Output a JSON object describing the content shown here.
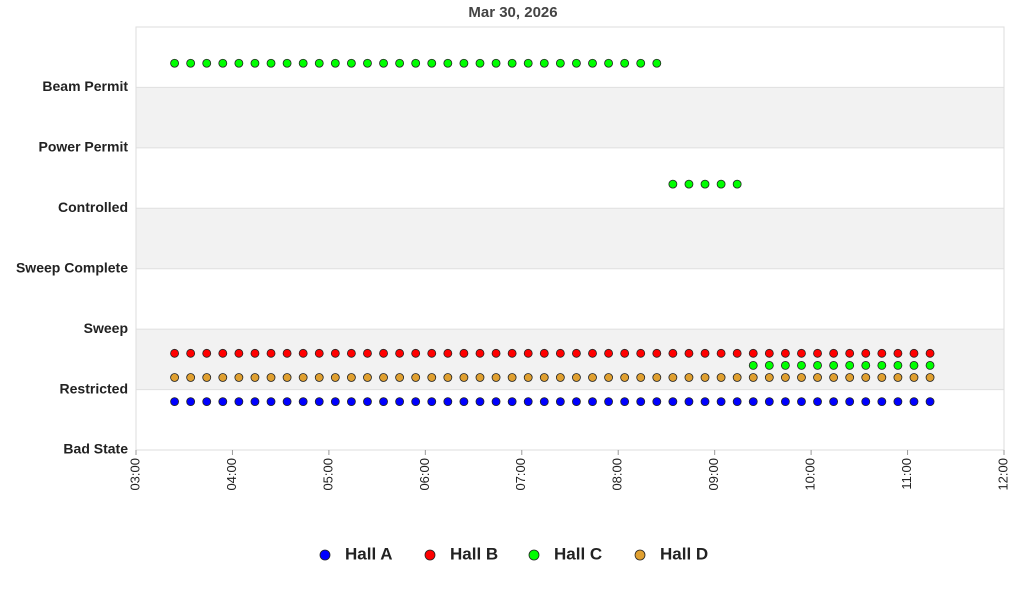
{
  "chart_data": {
    "type": "scatter",
    "title": "Mar 30, 2026",
    "x": [
      "03:24",
      "03:34",
      "03:44",
      "03:54",
      "04:04",
      "04:14",
      "04:24",
      "04:34",
      "04:44",
      "04:54",
      "05:04",
      "05:14",
      "05:24",
      "05:34",
      "05:44",
      "05:54",
      "06:04",
      "06:14",
      "06:24",
      "06:34",
      "06:44",
      "06:54",
      "07:04",
      "07:14",
      "07:24",
      "07:34",
      "07:44",
      "07:54",
      "08:04",
      "08:14",
      "08:24",
      "08:34",
      "08:44",
      "08:54",
      "09:04",
      "09:14",
      "09:24",
      "09:34",
      "09:44",
      "09:54",
      "10:04",
      "10:14",
      "10:24",
      "10:34",
      "10:44",
      "10:54",
      "11:04",
      "11:14"
    ],
    "series": [
      {
        "name": "Hall A",
        "color": "#0000ff",
        "values": [
          0.8,
          0.8,
          0.8,
          0.8,
          0.8,
          0.8,
          0.8,
          0.8,
          0.8,
          0.8,
          0.8,
          0.8,
          0.8,
          0.8,
          0.8,
          0.8,
          0.8,
          0.8,
          0.8,
          0.8,
          0.8,
          0.8,
          0.8,
          0.8,
          0.8,
          0.8,
          0.8,
          0.8,
          0.8,
          0.8,
          0.8,
          0.8,
          0.8,
          0.8,
          0.8,
          0.8,
          0.8,
          0.8,
          0.8,
          0.8,
          0.8,
          0.8,
          0.8,
          0.8,
          0.8,
          0.8,
          0.8,
          0.8
        ]
      },
      {
        "name": "Hall B",
        "color": "#ff0000",
        "values": [
          1.6,
          1.6,
          1.6,
          1.6,
          1.6,
          1.6,
          1.6,
          1.6,
          1.6,
          1.6,
          1.6,
          1.6,
          1.6,
          1.6,
          1.6,
          1.6,
          1.6,
          1.6,
          1.6,
          1.6,
          1.6,
          1.6,
          1.6,
          1.6,
          1.6,
          1.6,
          1.6,
          1.6,
          1.6,
          1.6,
          1.6,
          1.6,
          1.6,
          1.6,
          1.6,
          1.6,
          1.6,
          1.6,
          1.6,
          1.6,
          1.6,
          1.6,
          1.6,
          1.6,
          1.6,
          1.6,
          1.6,
          1.6
        ]
      },
      {
        "name": "Hall C",
        "color": "#00ff00",
        "values": [
          6.4,
          6.4,
          6.4,
          6.4,
          6.4,
          6.4,
          6.4,
          6.4,
          6.4,
          6.4,
          6.4,
          6.4,
          6.4,
          6.4,
          6.4,
          6.4,
          6.4,
          6.4,
          6.4,
          6.4,
          6.4,
          6.4,
          6.4,
          6.4,
          6.4,
          6.4,
          6.4,
          6.4,
          6.4,
          6.4,
          6.4,
          4.4,
          4.4,
          4.4,
          4.4,
          4.4,
          1.4,
          1.4,
          1.4,
          1.4,
          1.4,
          1.4,
          1.4,
          1.4,
          1.4,
          1.4,
          1.4,
          1.4
        ]
      },
      {
        "name": "Hall D",
        "color": "#e0a030",
        "values": [
          1.2,
          1.2,
          1.2,
          1.2,
          1.2,
          1.2,
          1.2,
          1.2,
          1.2,
          1.2,
          1.2,
          1.2,
          1.2,
          1.2,
          1.2,
          1.2,
          1.2,
          1.2,
          1.2,
          1.2,
          1.2,
          1.2,
          1.2,
          1.2,
          1.2,
          1.2,
          1.2,
          1.2,
          1.2,
          1.2,
          1.2,
          1.2,
          1.2,
          1.2,
          1.2,
          1.2,
          1.2,
          1.2,
          1.2,
          1.2,
          1.2,
          1.2,
          1.2,
          1.2,
          1.2,
          1.2,
          1.2,
          1.2
        ]
      }
    ],
    "xlim": [
      "03:00",
      "12:00"
    ],
    "xticks": [
      "03:00",
      "04:00",
      "05:00",
      "06:00",
      "07:00",
      "08:00",
      "09:00",
      "10:00",
      "11:00",
      "12:00"
    ],
    "ylim": [
      0,
      7
    ],
    "yticks": [
      {
        "value": 0,
        "label": "Bad State"
      },
      {
        "value": 1,
        "label": "Restricted"
      },
      {
        "value": 2,
        "label": "Sweep"
      },
      {
        "value": 3,
        "label": "Sweep Complete"
      },
      {
        "value": 4,
        "label": "Controlled"
      },
      {
        "value": 5,
        "label": "Power Permit"
      },
      {
        "value": 6,
        "label": "Beam Permit"
      }
    ],
    "grid": true,
    "legend": "bottom"
  }
}
